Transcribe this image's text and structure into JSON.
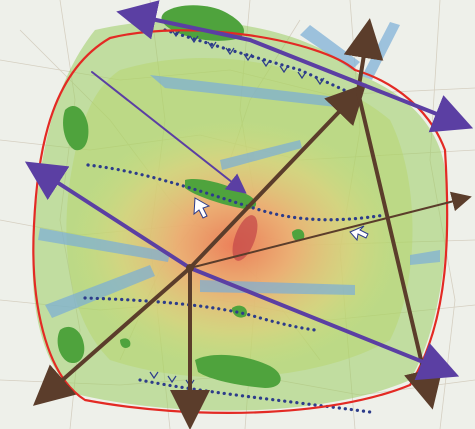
{
  "map": {
    "colors": {
      "base": "#eef0ea",
      "road": "#d6cfc0",
      "green_zone": "#8fc75a",
      "heat_center": "#ef8a63",
      "heat_mid": "#f3b27a",
      "heat_outer": "#e3d67a",
      "boundary": "#e32a24",
      "axis_brown": "#5b3d2b",
      "axis_purple": "#5b3fa3",
      "corridor_blue": "#7aaed7",
      "forest_green": "#4fa33d",
      "dot_chain": "#2d3c8a",
      "core_ellipse": "#c64a4a"
    },
    "layers": {
      "boundary": "planning-boundary",
      "axes_brown": "development-axes",
      "axes_purple": "transport-corridors",
      "blue_wedges": "ecological-corridors",
      "dot_chains": "greenbelt-lines"
    }
  }
}
